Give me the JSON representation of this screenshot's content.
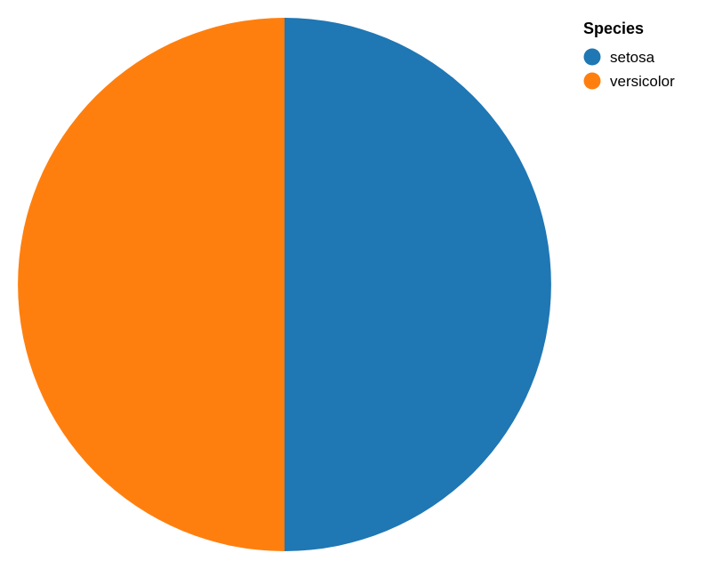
{
  "chart_data": {
    "type": "pie",
    "categories": [
      "setosa",
      "versicolor"
    ],
    "values": [
      50,
      50
    ],
    "colors": [
      "#1f77b4",
      "#ff7f0e"
    ],
    "start_angle_deg": 0,
    "direction": "clockwise",
    "legend": {
      "title": "Species",
      "placement": "top-right",
      "entries": [
        "setosa",
        "versicolor"
      ]
    }
  }
}
